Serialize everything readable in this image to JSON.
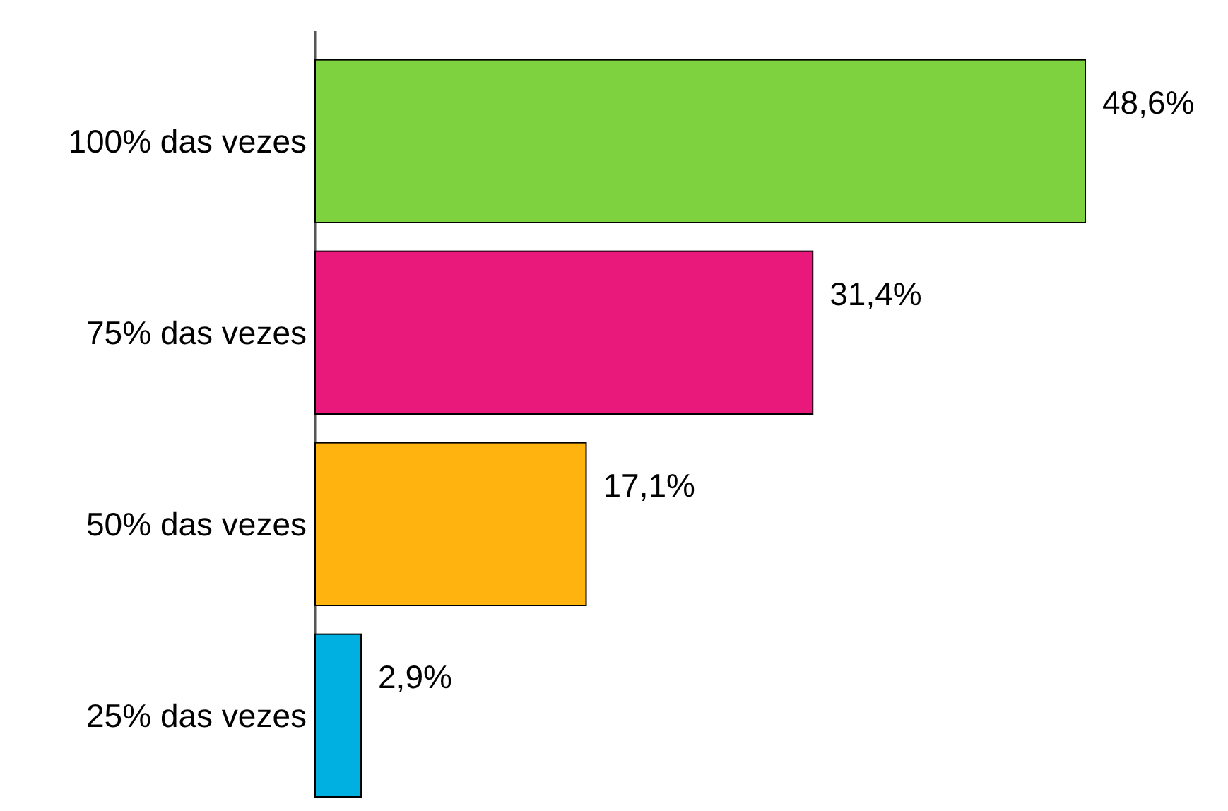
{
  "chart_data": {
    "type": "bar",
    "orientation": "horizontal",
    "categories": [
      "100% das vezes",
      "75% das vezes",
      "50% das vezes",
      "25% das vezes"
    ],
    "values": [
      48.6,
      31.4,
      17.1,
      2.9
    ],
    "colors": [
      "#7ed13f",
      "#e8197a",
      "#ffb30f",
      "#00b0e0"
    ],
    "value_labels": [
      "48,6%",
      "31,4%",
      "17,1%",
      "2,9%"
    ]
  }
}
